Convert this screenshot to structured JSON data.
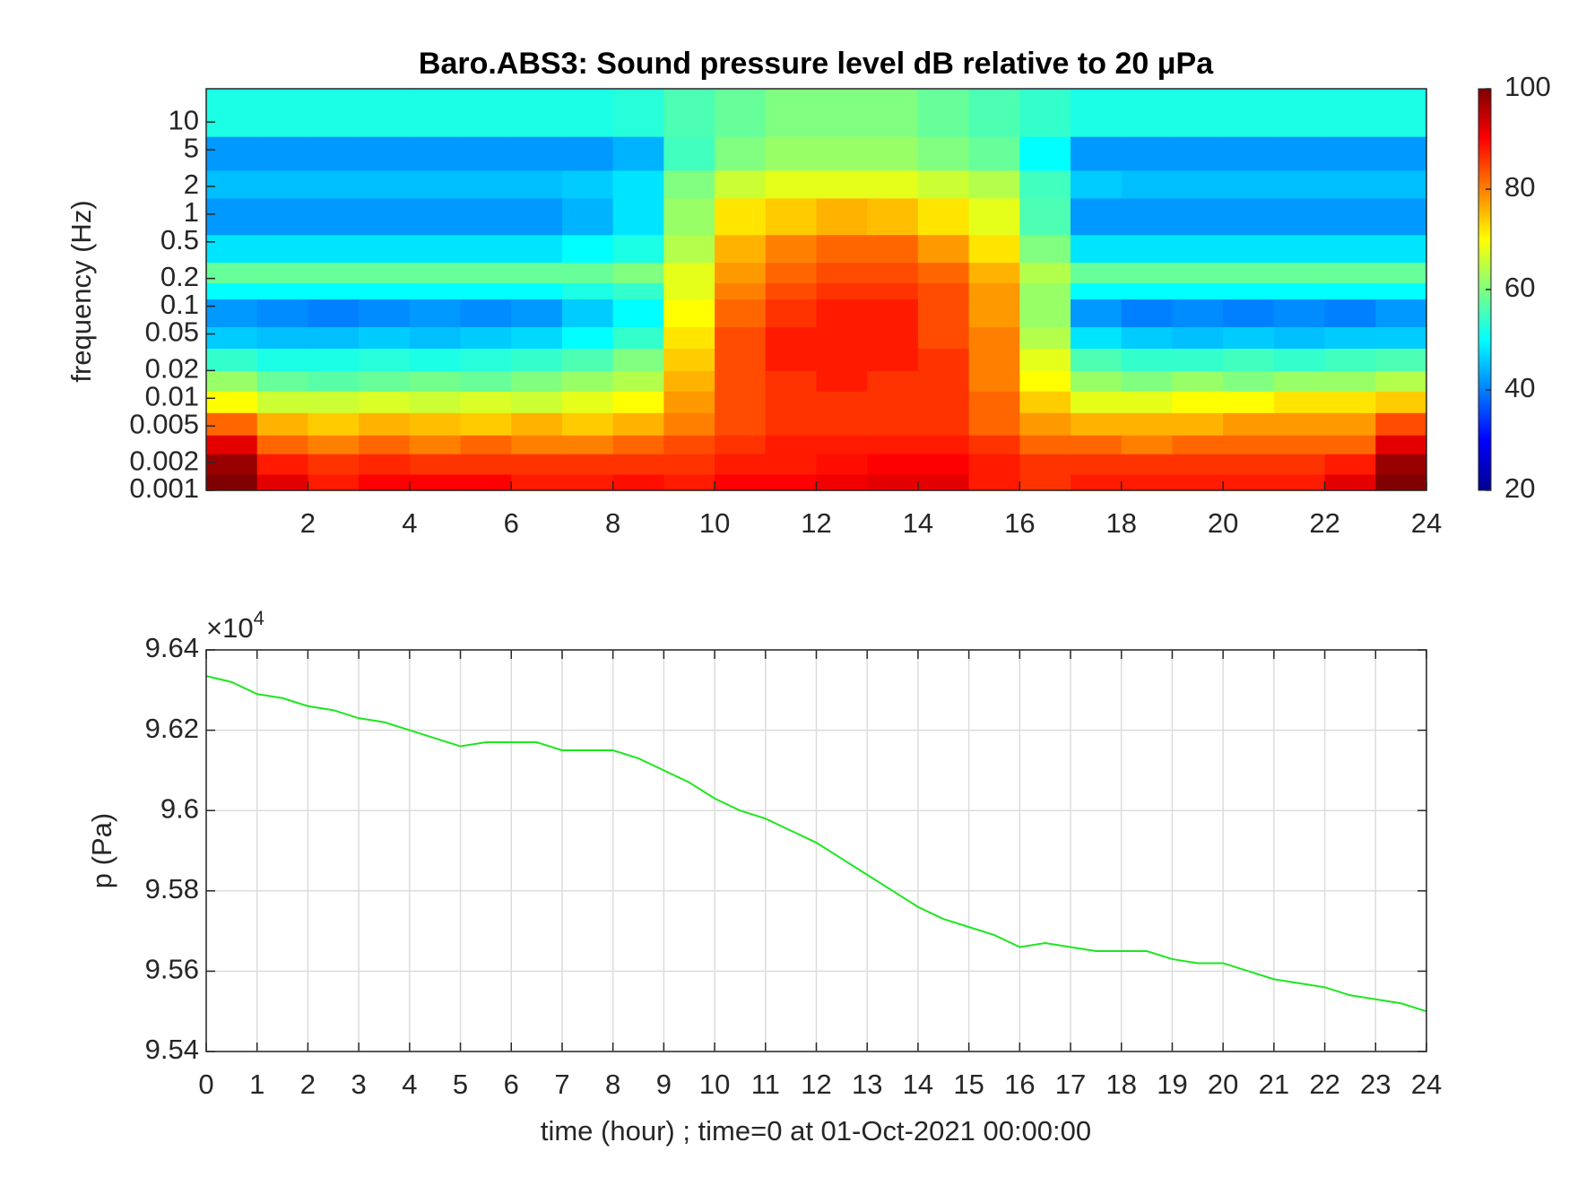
{
  "chart_data": [
    {
      "type": "heatmap",
      "title": "Baro.ABS3: Sound pressure level dB relative to 20 μPa",
      "ylabel": "frequency (Hz)",
      "yscale": "log",
      "colormap": "jet",
      "x_bins": [
        0,
        1,
        2,
        3,
        4,
        5,
        6,
        7,
        8,
        9,
        10,
        11,
        12,
        13,
        14,
        15,
        16,
        17,
        18,
        19,
        20,
        21,
        22,
        23,
        24
      ],
      "y_bins": [
        0.001,
        0.0015,
        0.0025,
        0.004,
        0.007,
        0.012,
        0.02,
        0.035,
        0.06,
        0.12,
        0.18,
        0.3,
        0.6,
        1.5,
        3,
        7,
        23
      ],
      "values": [
        [
          100,
          92,
          88,
          90,
          90,
          90,
          88,
          88,
          89,
          88,
          90,
          90,
          91,
          92,
          92,
          88,
          86,
          88,
          88,
          88,
          88,
          88,
          92,
          100
        ],
        [
          98,
          88,
          86,
          87,
          86,
          86,
          86,
          86,
          86,
          86,
          88,
          88,
          89,
          90,
          90,
          88,
          86,
          86,
          86,
          86,
          86,
          86,
          88,
          98
        ],
        [
          92,
          82,
          80,
          82,
          80,
          82,
          80,
          80,
          82,
          84,
          86,
          88,
          88,
          88,
          88,
          86,
          82,
          82,
          80,
          82,
          82,
          82,
          82,
          92
        ],
        [
          82,
          76,
          74,
          76,
          75,
          74,
          76,
          74,
          76,
          80,
          84,
          86,
          86,
          86,
          86,
          82,
          78,
          76,
          76,
          76,
          78,
          78,
          78,
          84
        ],
        [
          70,
          66,
          66,
          67,
          66,
          67,
          66,
          68,
          70,
          78,
          84,
          86,
          86,
          86,
          86,
          82,
          74,
          68,
          68,
          70,
          70,
          72,
          72,
          74
        ],
        [
          62,
          58,
          57,
          58,
          59,
          58,
          60,
          62,
          64,
          76,
          84,
          86,
          88,
          86,
          86,
          80,
          70,
          62,
          60,
          62,
          60,
          62,
          62,
          64
        ],
        [
          54,
          52,
          52,
          53,
          52,
          53,
          54,
          56,
          60,
          74,
          84,
          88,
          88,
          88,
          86,
          80,
          68,
          56,
          54,
          54,
          55,
          54,
          55,
          56
        ],
        [
          46,
          45,
          45,
          46,
          45,
          46,
          47,
          50,
          54,
          72,
          84,
          88,
          88,
          88,
          84,
          80,
          64,
          48,
          46,
          45,
          46,
          45,
          46,
          46
        ],
        [
          42,
          41,
          40,
          41,
          42,
          41,
          42,
          46,
          50,
          70,
          82,
          86,
          88,
          88,
          84,
          78,
          62,
          42,
          40,
          41,
          40,
          41,
          40,
          42
        ],
        [
          50,
          50,
          50,
          50,
          50,
          50,
          50,
          52,
          54,
          68,
          80,
          84,
          86,
          86,
          84,
          78,
          62,
          50,
          50,
          50,
          50,
          50,
          50,
          50
        ],
        [
          58,
          58,
          58,
          58,
          58,
          58,
          58,
          58,
          60,
          68,
          78,
          82,
          84,
          84,
          82,
          76,
          64,
          58,
          58,
          58,
          58,
          58,
          58,
          58
        ],
        [
          48,
          48,
          48,
          48,
          48,
          48,
          48,
          50,
          52,
          64,
          76,
          80,
          82,
          82,
          78,
          72,
          60,
          48,
          48,
          48,
          48,
          48,
          48,
          48
        ],
        [
          42,
          42,
          42,
          42,
          42,
          42,
          42,
          44,
          48,
          62,
          72,
          74,
          76,
          75,
          72,
          68,
          56,
          42,
          42,
          42,
          42,
          42,
          42,
          42
        ],
        [
          45,
          45,
          45,
          45,
          45,
          45,
          45,
          46,
          48,
          60,
          66,
          68,
          68,
          68,
          66,
          64,
          55,
          46,
          45,
          45,
          45,
          45,
          45,
          45
        ],
        [
          42,
          42,
          42,
          42,
          42,
          42,
          42,
          42,
          44,
          55,
          60,
          62,
          62,
          62,
          60,
          58,
          50,
          42,
          42,
          42,
          42,
          42,
          42,
          42
        ],
        [
          52,
          52,
          52,
          52,
          52,
          52,
          52,
          52,
          53,
          56,
          58,
          60,
          60,
          60,
          58,
          56,
          54,
          52,
          52,
          52,
          52,
          52,
          52,
          52
        ]
      ],
      "xlim": [
        0,
        24
      ],
      "xticks": [
        2,
        4,
        6,
        8,
        10,
        12,
        14,
        16,
        18,
        20,
        22,
        24
      ],
      "ylim": [
        0.001,
        23
      ],
      "yticks": [
        0.001,
        0.002,
        0.005,
        0.01,
        0.02,
        0.05,
        0.1,
        0.2,
        0.5,
        1,
        2,
        5,
        10
      ],
      "clim": [
        20,
        100
      ],
      "cticks": [
        20,
        40,
        60,
        80,
        100
      ]
    },
    {
      "type": "line",
      "xlabel": "time (hour) ; time=0 at 01-Oct-2021 00:00:00",
      "ylabel": "p (Pa)",
      "y_offset_label": "×10",
      "y_offset_exponent": "4",
      "color": "#1ee61e",
      "grid": true,
      "x": [
        0,
        0.5,
        1,
        1.5,
        2,
        2.5,
        3,
        3.5,
        4,
        4.5,
        5,
        5.5,
        6,
        6.5,
        7,
        7.5,
        8,
        8.5,
        9,
        9.5,
        10,
        10.5,
        11,
        11.5,
        12,
        12.5,
        13,
        13.5,
        14,
        14.5,
        15,
        15.5,
        16,
        16.5,
        17,
        17.5,
        18,
        18.5,
        19,
        19.5,
        20,
        20.5,
        21,
        21.5,
        22,
        22.5,
        23,
        23.5,
        24
      ],
      "values": [
        9.6335,
        9.632,
        9.629,
        9.628,
        9.626,
        9.625,
        9.623,
        9.622,
        9.62,
        9.618,
        9.616,
        9.617,
        9.617,
        9.617,
        9.615,
        9.615,
        9.615,
        9.613,
        9.61,
        9.607,
        9.603,
        9.6,
        9.598,
        9.595,
        9.592,
        9.588,
        9.584,
        9.58,
        9.576,
        9.573,
        9.571,
        9.569,
        9.566,
        9.567,
        9.566,
        9.565,
        9.565,
        9.565,
        9.563,
        9.562,
        9.562,
        9.56,
        9.558,
        9.557,
        9.556,
        9.554,
        9.553,
        9.552,
        9.55
      ],
      "xlim": [
        0,
        24
      ],
      "xticks": [
        0,
        1,
        2,
        3,
        4,
        5,
        6,
        7,
        8,
        9,
        10,
        11,
        12,
        13,
        14,
        15,
        16,
        17,
        18,
        19,
        20,
        21,
        22,
        23,
        24
      ],
      "ylim": [
        9.54,
        9.64
      ],
      "yticks": [
        9.54,
        9.56,
        9.58,
        9.6,
        9.62,
        9.64
      ]
    }
  ]
}
